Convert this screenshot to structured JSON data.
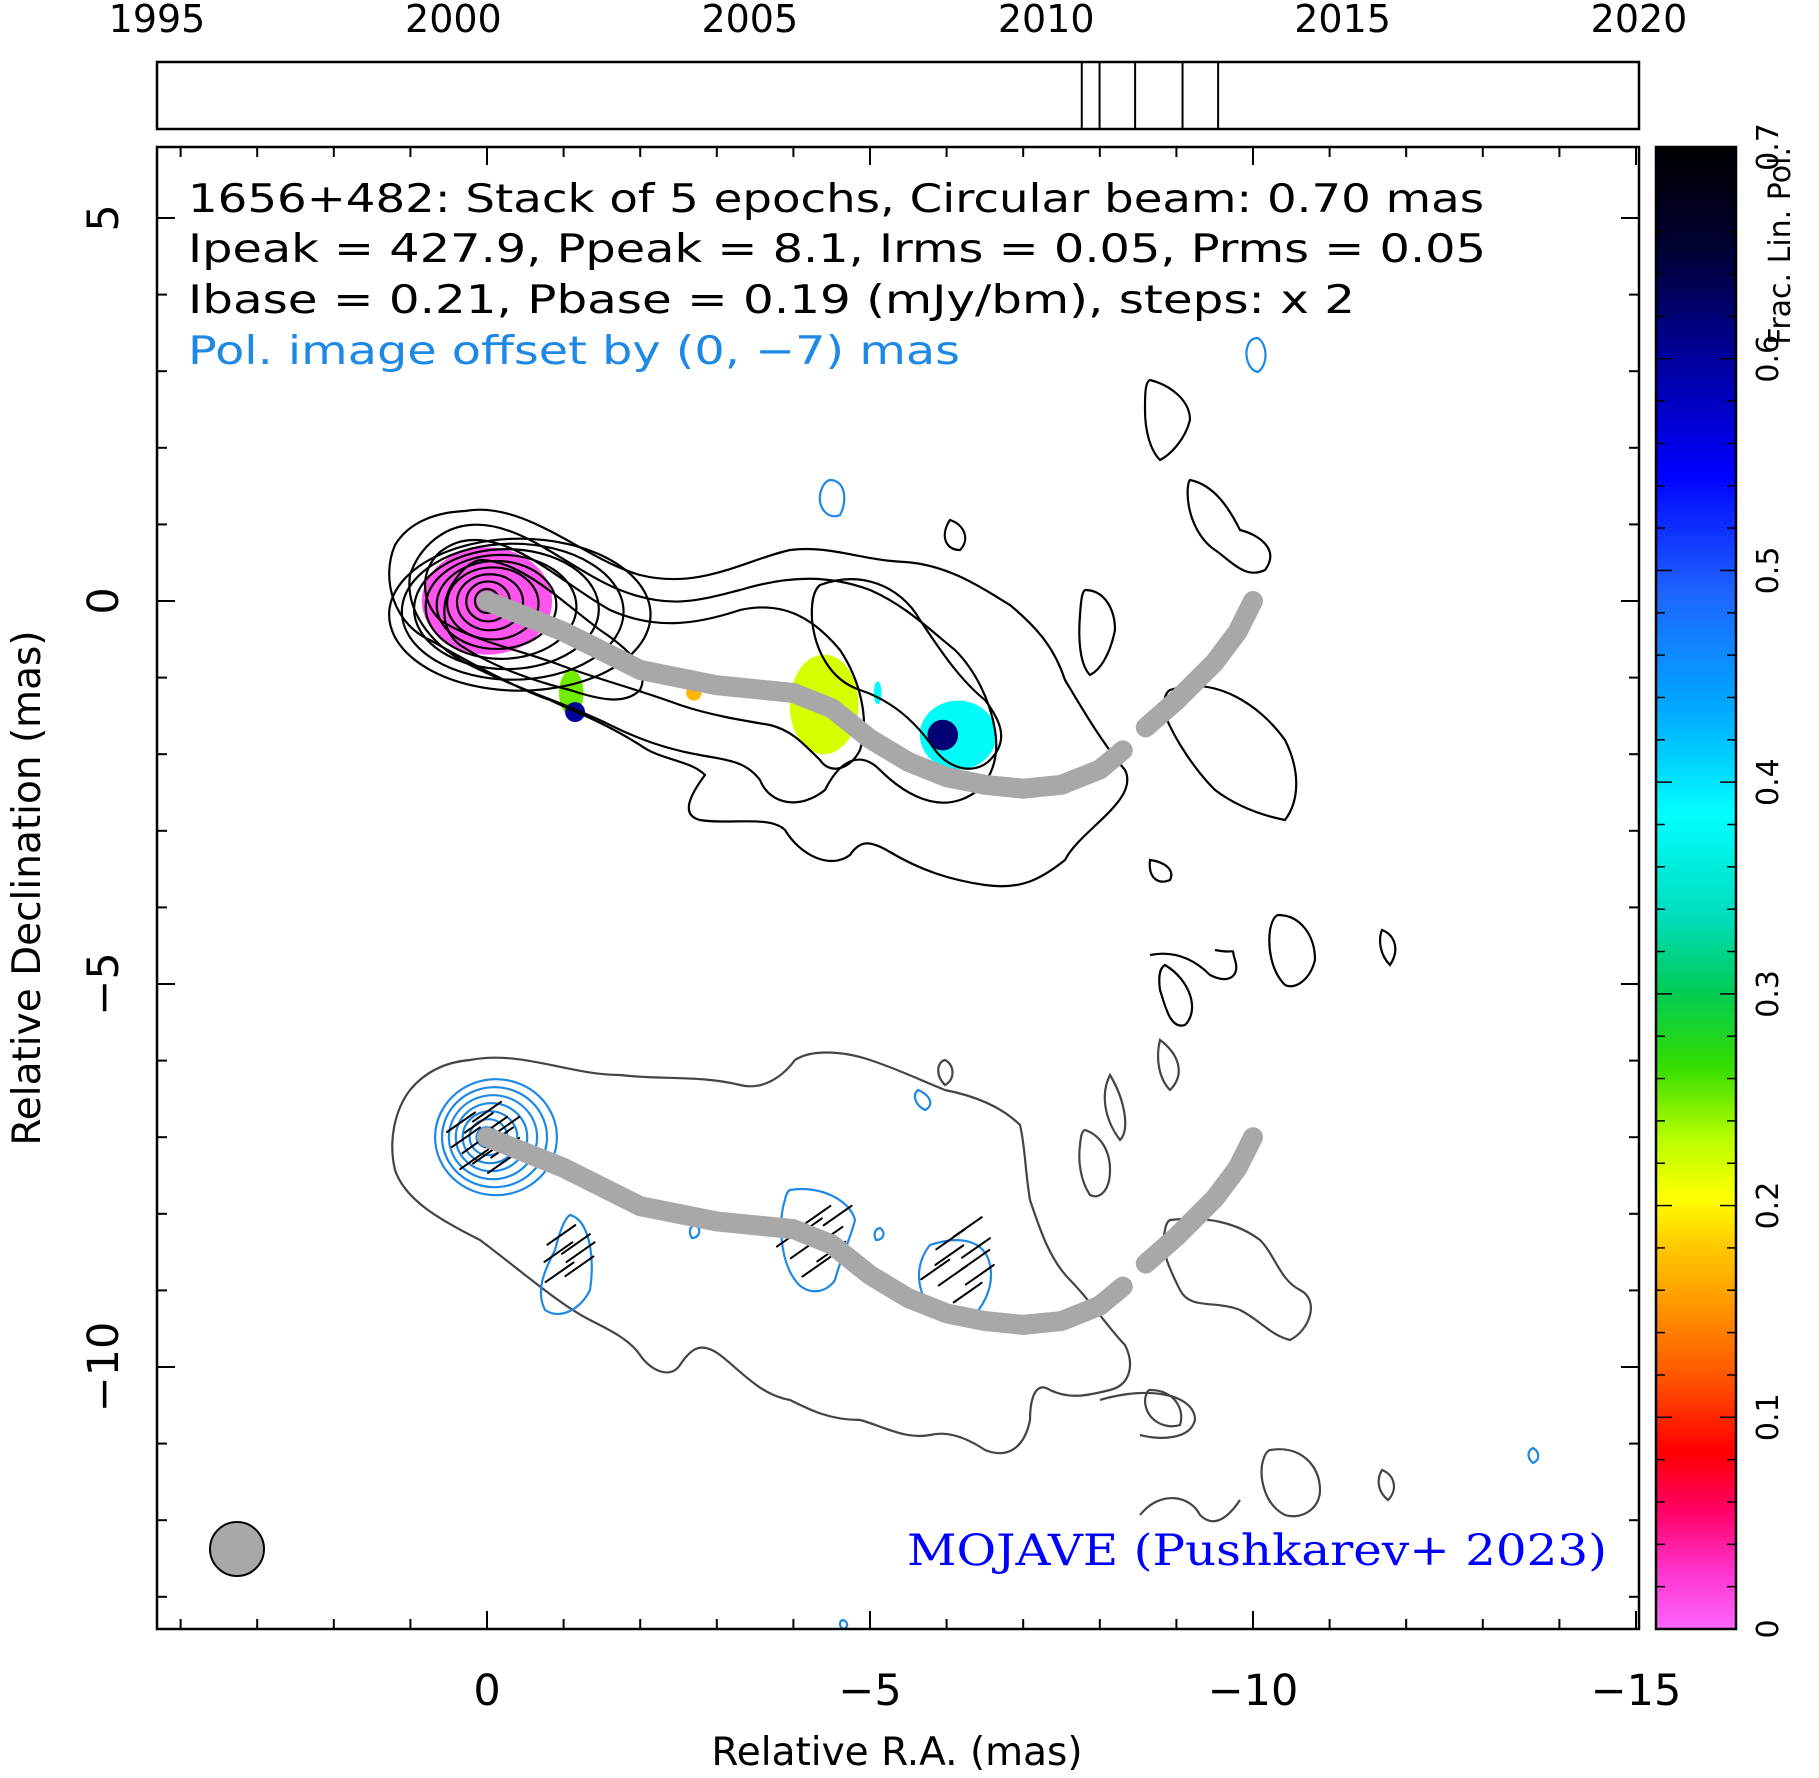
{
  "chart_data": {
    "type": "contour",
    "source": "1656+482",
    "header": {
      "line1": "1656+482: Stack of 5 epochs, Circular beam: 0.70 mas",
      "line2": "Ipeak = 427.9, Ppeak = 8.1, Irms = 0.05, Prms = 0.05",
      "line3": "Ibase = 0.21, Pbase = 0.19 (mJy/bm), steps: x 2",
      "line4": "Pol. image offset by (0, −7) mas"
    },
    "credit": "MOJAVE (Pushkarev+ 2023)",
    "xlabel": "Relative R.A. (mas)",
    "ylabel": "Relative Declination (mas)",
    "xlim": [
      4.3,
      -15
    ],
    "ylim": [
      -13.5,
      6
    ],
    "x_ticks": [
      0,
      -5,
      -10,
      -15
    ],
    "x_tick_labels": [
      "0",
      "−5",
      "−10",
      "−15"
    ],
    "y_ticks": [
      5,
      0,
      -5,
      -10
    ],
    "y_tick_labels": [
      "5",
      "0",
      "−5",
      "−10"
    ],
    "epoch_axis": {
      "range": [
        1995,
        2020
      ],
      "ticks": [
        1995,
        2000,
        2005,
        2010,
        2015,
        2020
      ],
      "tick_labels": [
        "1995",
        "2000",
        "2005",
        "2010",
        "2015",
        "2020"
      ],
      "epochs": [
        2010.6,
        2010.9,
        2011.5,
        2012.3,
        2012.9
      ]
    },
    "colorbar": {
      "label": "Frac. Lin. Pol.",
      "range": [
        0,
        0.7
      ],
      "ticks": [
        0,
        0.1,
        0.2,
        0.3,
        0.4,
        0.5,
        0.6,
        0.7
      ],
      "tick_labels": [
        "0",
        "0.1",
        "0.2",
        "0.3",
        "0.4",
        "0.5",
        "0.6",
        "0.7"
      ]
    },
    "beam_mas": 0.7,
    "core": [
      0,
      0
    ],
    "pol_offset": [
      0,
      -7
    ],
    "ridgeline": [
      [
        0,
        0
      ],
      [
        -1,
        -0.4
      ],
      [
        -2,
        -0.9
      ],
      [
        -3,
        -1.1
      ],
      [
        -4,
        -1.2
      ],
      [
        -4.5,
        -1.4
      ],
      [
        -5,
        -1.8
      ],
      [
        -5.5,
        -2.1
      ],
      [
        -6,
        -2.3
      ],
      [
        -6.5,
        -2.4
      ],
      [
        -7,
        -2.45
      ],
      [
        -7.5,
        -2.4
      ],
      [
        -8,
        -2.2
      ],
      [
        -8.3,
        -1.95
      ]
    ],
    "ridgeline_outer": [
      [
        -8.6,
        -1.65
      ],
      [
        -9,
        -1.3
      ],
      [
        -9.5,
        -0.8
      ],
      [
        -9.8,
        -0.4
      ],
      [
        -10,
        0
      ]
    ],
    "fpol_patches": [
      {
        "x": 0,
        "y": 0,
        "rx": 0.85,
        "ry": 0.7,
        "fpol": 0.01
      },
      {
        "x": -1.1,
        "y": -1.2,
        "rx": 0.16,
        "ry": 0.3,
        "fpol": 0.25
      },
      {
        "x": -1.15,
        "y": -1.45,
        "rx": 0.13,
        "ry": 0.13,
        "fpol": 0.6
      },
      {
        "x": -2.7,
        "y": -1.2,
        "rx": 0.1,
        "ry": 0.1,
        "fpol": 0.17
      },
      {
        "x": -4.4,
        "y": -1.35,
        "rx": 0.45,
        "ry": 0.65,
        "fpol": 0.22
      },
      {
        "x": -5.1,
        "y": -1.2,
        "rx": 0.05,
        "ry": 0.15,
        "fpol": 0.38
      },
      {
        "x": -6.15,
        "y": -1.75,
        "rx": 0.5,
        "ry": 0.45,
        "fpol": 0.38
      },
      {
        "x": -5.95,
        "y": -1.75,
        "rx": 0.2,
        "ry": 0.2,
        "fpol": 0.62
      },
      {
        "x": -1.8,
        "y": -0.85,
        "rx": 0.06,
        "ry": 0.06,
        "fpol": 0.08
      }
    ],
    "colors": {
      "total_intensity_contours": "#000000",
      "lower_contours": "#444444",
      "pol_contours": "#1e88e5",
      "ridgeline": "#a8a8a8",
      "evpa": "#000000",
      "credit": "#0000ff",
      "beam": "#a8a8a8"
    }
  }
}
